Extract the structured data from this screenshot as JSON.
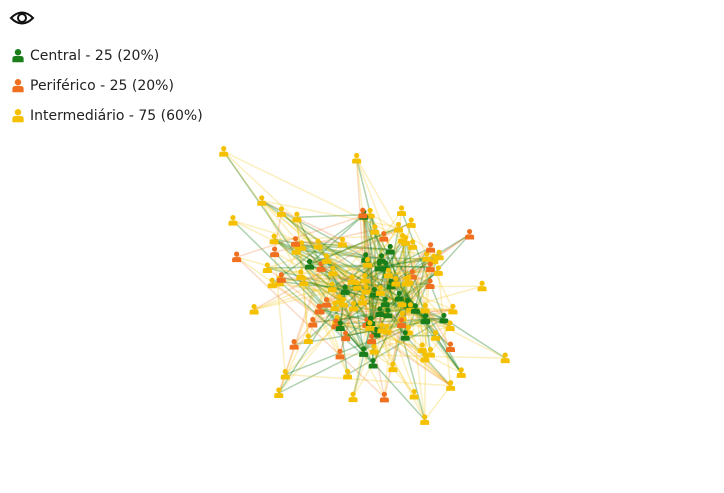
{
  "legend": {
    "items": [
      {
        "label": "Central - 25 (20%)",
        "color": "#1a7f1a"
      },
      {
        "label": "Periférico - 25 (20%)",
        "color": "#f07020"
      },
      {
        "label": "Intermediário - 75 (60%)",
        "color": "#f5c000"
      }
    ]
  }
}
